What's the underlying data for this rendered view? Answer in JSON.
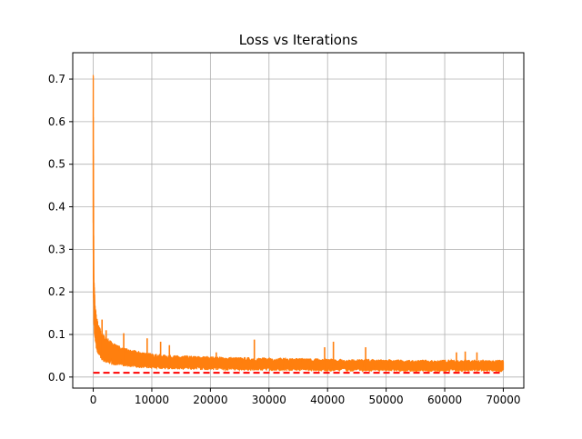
{
  "chart_data": {
    "type": "line",
    "title": "Loss vs Iterations",
    "xlabel": "",
    "ylabel": "",
    "xlim": [
      -3500,
      73500
    ],
    "ylim": [
      -0.026,
      0.762
    ],
    "x_ticks": [
      0,
      10000,
      20000,
      30000,
      40000,
      50000,
      60000,
      70000
    ],
    "y_ticks": [
      0.0,
      0.1,
      0.2,
      0.3,
      0.4,
      0.5,
      0.6,
      0.7
    ],
    "x_tick_labels": [
      "0",
      "10000",
      "20000",
      "30000",
      "40000",
      "50000",
      "60000",
      "70000"
    ],
    "y_tick_labels": [
      "0.0",
      "0.1",
      "0.2",
      "0.3",
      "0.4",
      "0.5",
      "0.6",
      "0.7"
    ],
    "grid": true,
    "legend": "none",
    "series": [
      {
        "color": "#ff7f0e",
        "style": "solid",
        "envelope": {
          "x": [
            0,
            100,
            300,
            600,
            1000,
            1500,
            2000,
            3000,
            4000,
            5000,
            6000,
            8000,
            10000,
            12000,
            15000,
            20000,
            25000,
            30000,
            35000,
            40000,
            45000,
            50000,
            55000,
            60000,
            65000,
            70000
          ],
          "upper": [
            0.725,
            0.25,
            0.17,
            0.14,
            0.12,
            0.105,
            0.095,
            0.085,
            0.075,
            0.07,
            0.065,
            0.06,
            0.055,
            0.052,
            0.05,
            0.048,
            0.046,
            0.045,
            0.044,
            0.043,
            0.042,
            0.041,
            0.04,
            0.04,
            0.04,
            0.04
          ],
          "lower": [
            0.23,
            0.12,
            0.085,
            0.06,
            0.05,
            0.04,
            0.035,
            0.03,
            0.028,
            0.026,
            0.024,
            0.022,
            0.02,
            0.019,
            0.018,
            0.017,
            0.016,
            0.015,
            0.015,
            0.014,
            0.014,
            0.014,
            0.013,
            0.013,
            0.013,
            0.013
          ]
        },
        "spikes": [
          {
            "x": 1500,
            "y": 0.135
          },
          {
            "x": 2200,
            "y": 0.11
          },
          {
            "x": 5200,
            "y": 0.103
          },
          {
            "x": 9200,
            "y": 0.091
          },
          {
            "x": 11500,
            "y": 0.083
          },
          {
            "x": 13000,
            "y": 0.075
          },
          {
            "x": 21000,
            "y": 0.058
          },
          {
            "x": 27500,
            "y": 0.088
          },
          {
            "x": 39500,
            "y": 0.07
          },
          {
            "x": 41000,
            "y": 0.083
          },
          {
            "x": 46500,
            "y": 0.07
          },
          {
            "x": 62000,
            "y": 0.058
          },
          {
            "x": 63500,
            "y": 0.06
          },
          {
            "x": 65500,
            "y": 0.058
          }
        ]
      },
      {
        "color": "#ff0000",
        "style": "dashed",
        "x": [
          0,
          70000
        ],
        "values": [
          0.01,
          0.01
        ]
      }
    ]
  }
}
